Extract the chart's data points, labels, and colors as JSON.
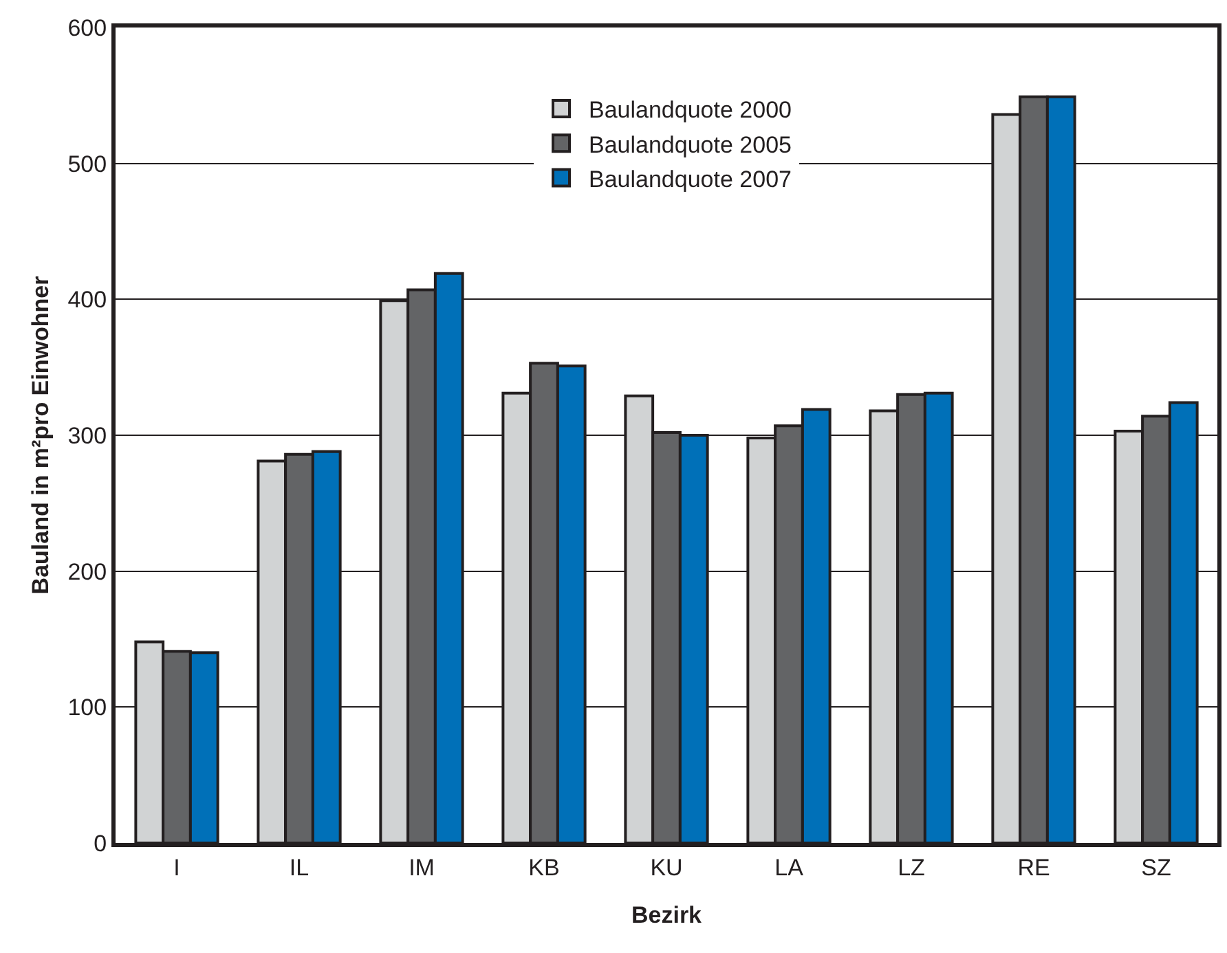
{
  "chart_data": {
    "type": "bar",
    "xlabel": "Bezirk",
    "ylabel": "Bauland in m²pro Einwohner",
    "categories": [
      "I",
      "IL",
      "IM",
      "KB",
      "KU",
      "LA",
      "LZ",
      "RE",
      "SZ"
    ],
    "series": [
      {
        "name": "Baulandquote 2000",
        "color": "#d1d3d4",
        "values": [
          148,
          281,
          399,
          331,
          329,
          298,
          318,
          536,
          303
        ]
      },
      {
        "name": "Baulandquote 2005",
        "color": "#636466",
        "values": [
          141,
          286,
          407,
          353,
          302,
          307,
          330,
          549,
          314
        ]
      },
      {
        "name": "Baulandquote 2007",
        "color": "#0070b8",
        "values": [
          140,
          288,
          419,
          351,
          300,
          319,
          331,
          549,
          324
        ]
      }
    ],
    "ylim": [
      0,
      600
    ],
    "yticks": [
      0,
      100,
      200,
      300,
      400,
      500,
      600
    ],
    "grid": "y",
    "legend": "top"
  }
}
